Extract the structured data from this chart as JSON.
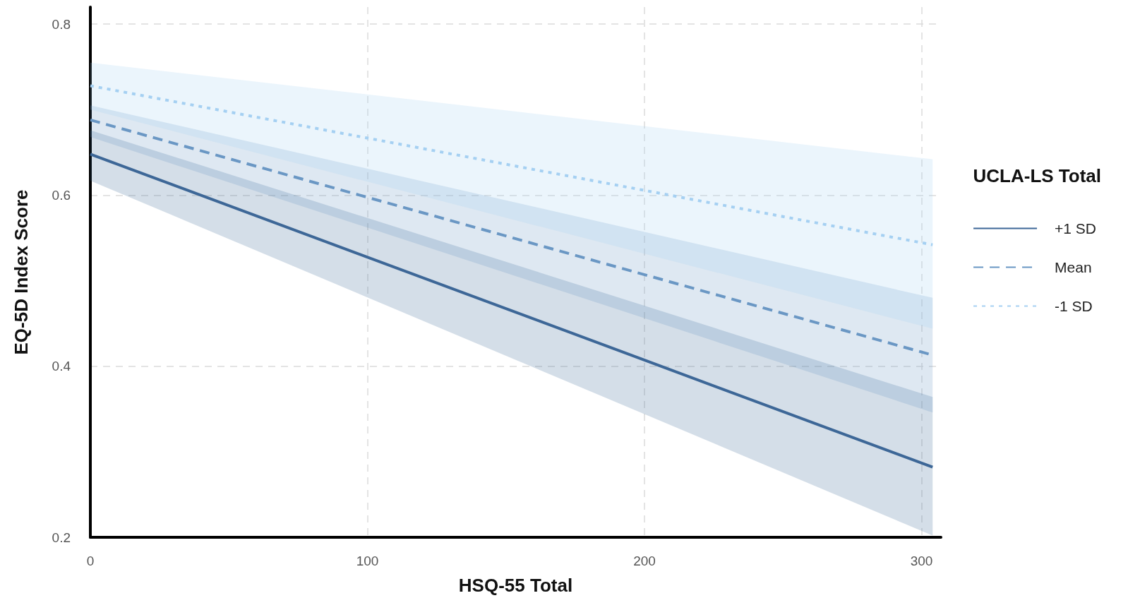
{
  "chart_data": {
    "type": "line",
    "xlabel": "HSQ-55 Total",
    "ylabel": "EQ-5D Index Score",
    "legend_title": "UCLA-LS Total",
    "legend": "right",
    "grid": true,
    "marker": "none",
    "xlim": [
      0,
      307
    ],
    "xticks": [
      0,
      100,
      200,
      300
    ],
    "ylim": [
      0.2,
      0.82
    ],
    "yticks": [
      0.2,
      0.4,
      0.6,
      0.8
    ],
    "x": [
      0,
      304
    ],
    "series": [
      {
        "name": "+1 SD",
        "color": "#3d6797",
        "line_style": "solid",
        "values": [
          0.648,
          0.282
        ],
        "lower": [
          0.617,
          0.202
        ],
        "upper": [
          0.676,
          0.364
        ]
      },
      {
        "name": "Mean",
        "color": "#6a97c4",
        "line_style": "dashed",
        "values": [
          0.688,
          0.413
        ],
        "lower": [
          0.668,
          0.346
        ],
        "upper": [
          0.705,
          0.48
        ]
      },
      {
        "name": "-1 SD",
        "color": "#a5d0f2",
        "line_style": "dotted",
        "values": [
          0.728,
          0.542
        ],
        "lower": [
          0.7,
          0.444
        ],
        "upper": [
          0.755,
          0.642
        ]
      }
    ]
  }
}
